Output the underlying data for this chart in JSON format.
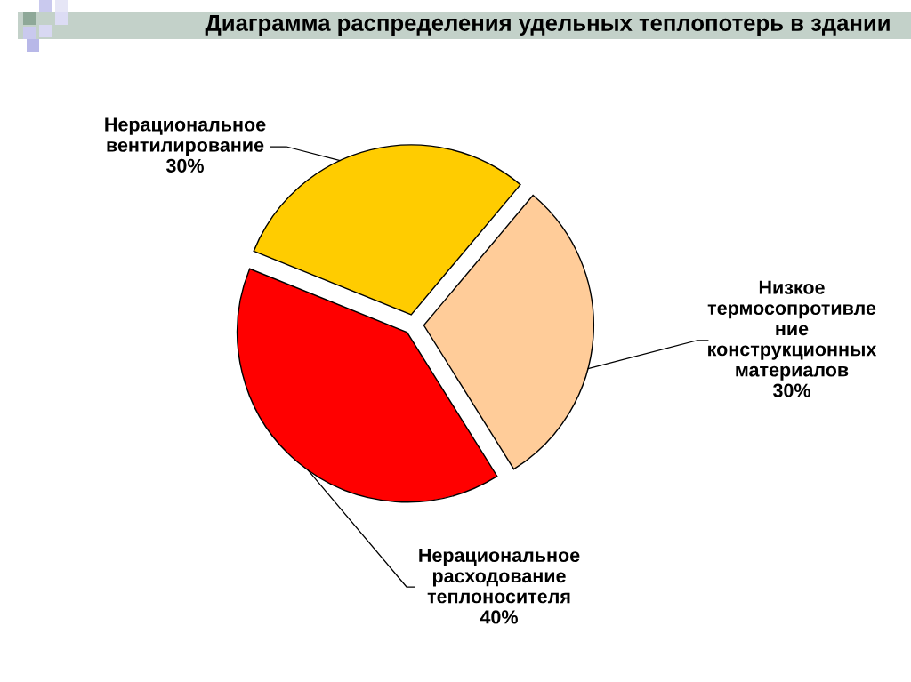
{
  "chart_data": {
    "type": "pie",
    "title": "Диаграмма распределения удельных теплопотерь в здании",
    "categories": [
      "Нерациональное\nвентилирование",
      "Нерациональное\nрасходование\nтеплоносителя",
      "Низкое\nтермосопротивле\nние\nконструкционных\nматериалов"
    ],
    "values": [
      30,
      40,
      30
    ],
    "colors": [
      "#ffcc00",
      "#ff0000",
      "#ffcc99"
    ],
    "value_labels": [
      "30%",
      "40%",
      "30%"
    ]
  }
}
